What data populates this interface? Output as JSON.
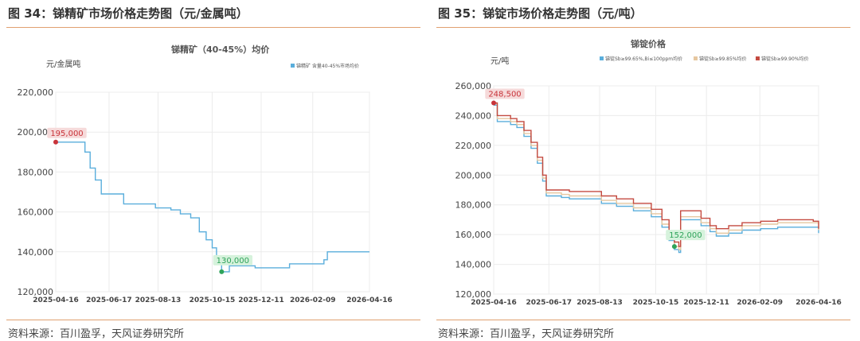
{
  "colors": {
    "accent_rule": "#e0a070",
    "series_blue": "#5aaedc",
    "series_cream": "#e6c7a0",
    "series_red": "#c44a40",
    "max_label_bg": "#f6dada",
    "min_label_bg": "#d6f2dc",
    "max_marker": "#c8333a",
    "min_marker": "#2ea35a"
  },
  "left_panel": {
    "figure_title": "图 34：锑精矿市场价格走势图（元/金属吨）",
    "source": "资料来源：百川盈孚，天风证券研究所",
    "chart_data": {
      "type": "line",
      "title": "锑精矿（40-45%）均价",
      "unit_label": "元/金属吨",
      "ylim": [
        120000,
        220000
      ],
      "yticks": [
        "120,000",
        "140,000",
        "160,000",
        "180,000",
        "200,000",
        "220,000"
      ],
      "xlim": [
        "2025-04-16",
        "2026-04-16"
      ],
      "xticks": [
        "2025-04-16",
        "2025-06-17",
        "2025-08-13",
        "2025-10-15",
        "2025-12-11",
        "2026-02-09",
        "2026-04-16"
      ],
      "grid": true,
      "legend_position": "top-right",
      "max_label": "195,000",
      "min_label": "130,000",
      "series": [
        {
          "name": "锑精矿 含量40-45%市场均价",
          "color": "#5aaedc",
          "points": [
            [
              "2025-04-16",
              195000
            ],
            [
              "2025-05-14",
              195000
            ],
            [
              "2025-05-20",
              190000
            ],
            [
              "2025-05-26",
              182000
            ],
            [
              "2025-06-01",
              176000
            ],
            [
              "2025-06-08",
              169000
            ],
            [
              "2025-06-30",
              169000
            ],
            [
              "2025-07-04",
              164000
            ],
            [
              "2025-08-04",
              164000
            ],
            [
              "2025-08-10",
              162000
            ],
            [
              "2025-08-28",
              161000
            ],
            [
              "2025-09-08",
              159000
            ],
            [
              "2025-09-20",
              157000
            ],
            [
              "2025-09-30",
              150000
            ],
            [
              "2025-10-08",
              146000
            ],
            [
              "2025-10-15",
              142000
            ],
            [
              "2025-10-20",
              137000
            ],
            [
              "2025-10-26",
              130000
            ],
            [
              "2025-11-02",
              130000
            ],
            [
              "2025-11-04",
              133000
            ],
            [
              "2025-12-01",
              133000
            ],
            [
              "2025-12-04",
              132000
            ],
            [
              "2026-01-10",
              132000
            ],
            [
              "2026-01-13",
              134000
            ],
            [
              "2026-02-18",
              134000
            ],
            [
              "2026-02-22",
              136000
            ],
            [
              "2026-02-26",
              140000
            ],
            [
              "2026-04-16",
              140000
            ]
          ]
        }
      ]
    }
  },
  "right_panel": {
    "figure_title": "图 35：锑锭市场价格走势图（元/吨）",
    "source": "资料来源：百川盈孚，天风证券研究所",
    "chart_data": {
      "type": "line",
      "title": "锑锭价格",
      "unit_label": "元/吨",
      "ylim": [
        120000,
        260000
      ],
      "yticks": [
        "120,000",
        "140,000",
        "160,000",
        "180,000",
        "200,000",
        "220,000",
        "240,000",
        "260,000"
      ],
      "xlim": [
        "2025-04-16",
        "2026-04-16"
      ],
      "xticks": [
        "2025-04-16",
        "2025-06-17",
        "2025-08-13",
        "2025-10-15",
        "2025-12-11",
        "2026-02-09",
        "2026-04-16"
      ],
      "grid": true,
      "legend_position": "top-right",
      "max_label": "248,500",
      "min_label": "152,000",
      "series": [
        {
          "name": "锑锭Sb≥99.65%,Bi≤100ppm均价",
          "color": "#5aaedc",
          "points": [
            [
              "2025-04-16",
              247000
            ],
            [
              "2025-04-20",
              236000
            ],
            [
              "2025-05-05",
              234000
            ],
            [
              "2025-05-12",
              232000
            ],
            [
              "2025-05-20",
              226000
            ],
            [
              "2025-05-28",
              218000
            ],
            [
              "2025-06-04",
              208000
            ],
            [
              "2025-06-10",
              196000
            ],
            [
              "2025-06-14",
              186000
            ],
            [
              "2025-07-01",
              185000
            ],
            [
              "2025-07-10",
              184000
            ],
            [
              "2025-08-15",
              181000
            ],
            [
              "2025-09-01",
              179000
            ],
            [
              "2025-09-20",
              176000
            ],
            [
              "2025-10-10",
              172000
            ],
            [
              "2025-10-22",
              165000
            ],
            [
              "2025-10-30",
              156000
            ],
            [
              "2025-11-05",
              150000
            ],
            [
              "2025-11-10",
              148000
            ],
            [
              "2025-11-12",
              170000
            ],
            [
              "2025-11-22",
              170000
            ],
            [
              "2025-12-05",
              166000
            ],
            [
              "2025-12-15",
              162000
            ],
            [
              "2025-12-22",
              159000
            ],
            [
              "2026-01-05",
              161000
            ],
            [
              "2026-01-20",
              163000
            ],
            [
              "2026-02-10",
              164000
            ],
            [
              "2026-03-01",
              165000
            ],
            [
              "2026-04-10",
              165000
            ],
            [
              "2026-04-16",
              161000
            ]
          ]
        },
        {
          "name": "锑锭Sb≥99.85%均价",
          "color": "#e6c7a0",
          "points": [
            [
              "2025-04-16",
              248000
            ],
            [
              "2025-04-20",
              238000
            ],
            [
              "2025-05-05",
              236000
            ],
            [
              "2025-05-12",
              234000
            ],
            [
              "2025-05-20",
              228000
            ],
            [
              "2025-05-28",
              220000
            ],
            [
              "2025-06-04",
              210000
            ],
            [
              "2025-06-10",
              198000
            ],
            [
              "2025-06-14",
              188000
            ],
            [
              "2025-07-01",
              187000
            ],
            [
              "2025-07-10",
              186000
            ],
            [
              "2025-08-15",
              183000
            ],
            [
              "2025-09-01",
              181000
            ],
            [
              "2025-09-20",
              178000
            ],
            [
              "2025-10-10",
              174000
            ],
            [
              "2025-10-22",
              167000
            ],
            [
              "2025-10-30",
              158000
            ],
            [
              "2025-11-05",
              152000
            ],
            [
              "2025-11-10",
              150000
            ],
            [
              "2025-11-12",
              172000
            ],
            [
              "2025-11-22",
              172000
            ],
            [
              "2025-12-05",
              168000
            ],
            [
              "2025-12-15",
              164000
            ],
            [
              "2025-12-22",
              161000
            ],
            [
              "2026-01-05",
              163000
            ],
            [
              "2026-01-20",
              166000
            ],
            [
              "2026-02-10",
              167000
            ],
            [
              "2026-03-01",
              168000
            ],
            [
              "2026-04-10",
              168000
            ],
            [
              "2026-04-16",
              163000
            ]
          ]
        },
        {
          "name": "锑锭Sb≥99.90%均价",
          "color": "#c44a40",
          "points": [
            [
              "2025-04-16",
              248500
            ],
            [
              "2025-04-20",
              240000
            ],
            [
              "2025-05-05",
              238000
            ],
            [
              "2025-05-12",
              236000
            ],
            [
              "2025-05-20",
              230000
            ],
            [
              "2025-05-28",
              222000
            ],
            [
              "2025-06-04",
              212000
            ],
            [
              "2025-06-10",
              200000
            ],
            [
              "2025-06-14",
              190000
            ],
            [
              "2025-07-01",
              190000
            ],
            [
              "2025-07-10",
              189000
            ],
            [
              "2025-08-15",
              186000
            ],
            [
              "2025-09-01",
              184000
            ],
            [
              "2025-09-20",
              181000
            ],
            [
              "2025-10-10",
              177000
            ],
            [
              "2025-10-22",
              170000
            ],
            [
              "2025-10-30",
              161000
            ],
            [
              "2025-11-05",
              155000
            ],
            [
              "2025-11-10",
              152000
            ],
            [
              "2025-11-12",
              176000
            ],
            [
              "2025-11-22",
              176000
            ],
            [
              "2025-12-05",
              171000
            ],
            [
              "2025-12-15",
              166000
            ],
            [
              "2025-12-22",
              164000
            ],
            [
              "2026-01-05",
              166000
            ],
            [
              "2026-01-20",
              168000
            ],
            [
              "2026-02-10",
              169000
            ],
            [
              "2026-03-01",
              170000
            ],
            [
              "2026-04-10",
              169000
            ],
            [
              "2026-04-16",
              164000
            ]
          ]
        }
      ]
    }
  }
}
